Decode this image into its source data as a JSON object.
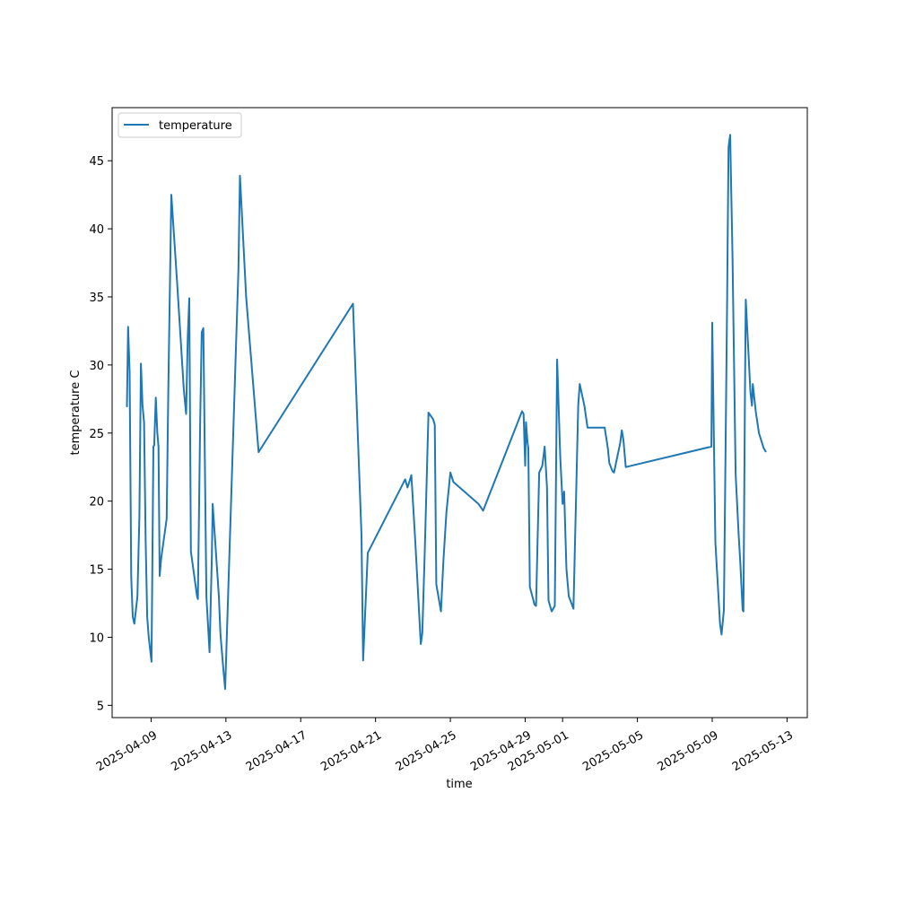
{
  "chart_data": {
    "type": "line",
    "xlabel": "time",
    "ylabel": "temperature C",
    "legend": "top-left",
    "grid": false,
    "colors": {
      "line": "#1f77b4"
    },
    "xlim": [
      "2025-04-06T22:00",
      "2025-05-14T02:00"
    ],
    "ylim": [
      4.1,
      48.9
    ],
    "x_ticks": [
      "2025-04-09",
      "2025-04-13",
      "2025-04-17",
      "2025-04-21",
      "2025-04-25",
      "2025-04-29",
      "2025-05-01",
      "2025-05-05",
      "2025-05-09",
      "2025-05-13"
    ],
    "y_ticks": [
      5,
      10,
      15,
      20,
      25,
      30,
      35,
      40,
      45
    ],
    "series": [
      {
        "name": "temperature",
        "points": [
          [
            "2025-04-07T17:00",
            26.9
          ],
          [
            "2025-04-07T18:30",
            32.8
          ],
          [
            "2025-04-07T20:30",
            29.5
          ],
          [
            "2025-04-07T22:30",
            14.4
          ],
          [
            "2025-04-08T00:30",
            11.5
          ],
          [
            "2025-04-08T02:30",
            11.0
          ],
          [
            "2025-04-08T04:30",
            12.0
          ],
          [
            "2025-04-08T06:30",
            13.0
          ],
          [
            "2025-04-08T09:00",
            18.9
          ],
          [
            "2025-04-08T11:00",
            30.1
          ],
          [
            "2025-04-08T13:00",
            27.0
          ],
          [
            "2025-04-08T15:00",
            25.8
          ],
          [
            "2025-04-08T17:00",
            17.0
          ],
          [
            "2025-04-08T19:00",
            11.5
          ],
          [
            "2025-04-08T21:00",
            10.0
          ],
          [
            "2025-04-09T00:30",
            8.2
          ],
          [
            "2025-04-09T03:00",
            24.0
          ],
          [
            "2025-04-09T04:00",
            24.1
          ],
          [
            "2025-04-09T06:00",
            27.6
          ],
          [
            "2025-04-09T08:00",
            25.0
          ],
          [
            "2025-04-09T09:30",
            24.0
          ],
          [
            "2025-04-09T11:00",
            14.5
          ],
          [
            "2025-04-09T13:00",
            15.8
          ],
          [
            "2025-04-09T20:00",
            18.7
          ],
          [
            "2025-04-09T22:00",
            28.0
          ],
          [
            "2025-04-10T02:00",
            42.5
          ],
          [
            "2025-04-10T10:00",
            35.5
          ],
          [
            "2025-04-10T18:00",
            28.2
          ],
          [
            "2025-04-10T21:00",
            26.4
          ],
          [
            "2025-04-10T23:00",
            32.0
          ],
          [
            "2025-04-11T01:00",
            34.9
          ],
          [
            "2025-04-11T03:00",
            16.3
          ],
          [
            "2025-04-11T11:00",
            13.0
          ],
          [
            "2025-04-11T12:00",
            12.8
          ],
          [
            "2025-04-11T15:00",
            26.0
          ],
          [
            "2025-04-11T17:00",
            32.4
          ],
          [
            "2025-04-11T19:00",
            32.7
          ],
          [
            "2025-04-11T23:00",
            13.0
          ],
          [
            "2025-04-12T03:00",
            8.9
          ],
          [
            "2025-04-12T06:00",
            16.0
          ],
          [
            "2025-04-12T07:00",
            19.8
          ],
          [
            "2025-04-12T15:00",
            13.0
          ],
          [
            "2025-04-12T17:00",
            10.2
          ],
          [
            "2025-04-12T21:00",
            7.5
          ],
          [
            "2025-04-12T23:00",
            6.2
          ],
          [
            "2025-04-13T16:00",
            37.0
          ],
          [
            "2025-04-13T18:00",
            43.9
          ],
          [
            "2025-04-14T02:00",
            35.0
          ],
          [
            "2025-04-14T18:00",
            23.6
          ],
          [
            "2025-04-19T19:00",
            34.5
          ],
          [
            "2025-04-20T06:00",
            17.5
          ],
          [
            "2025-04-20T08:00",
            8.3
          ],
          [
            "2025-04-20T14:00",
            16.2
          ],
          [
            "2025-04-22T14:00",
            21.6
          ],
          [
            "2025-04-22T17:00",
            21.0
          ],
          [
            "2025-04-22T22:00",
            21.9
          ],
          [
            "2025-04-23T03:00",
            17.0
          ],
          [
            "2025-04-23T10:00",
            9.5
          ],
          [
            "2025-04-23T12:00",
            10.3
          ],
          [
            "2025-04-23T15:00",
            16.0
          ],
          [
            "2025-04-23T20:00",
            26.5
          ],
          [
            "2025-04-24T02:00",
            26.0
          ],
          [
            "2025-04-24T04:00",
            25.6
          ],
          [
            "2025-04-24T06:00",
            13.9
          ],
          [
            "2025-04-24T12:00",
            11.9
          ],
          [
            "2025-04-24T15:00",
            15.6
          ],
          [
            "2025-04-24T19:00",
            19.2
          ],
          [
            "2025-04-25T00:00",
            22.1
          ],
          [
            "2025-04-25T04:00",
            21.4
          ],
          [
            "2025-04-26T12:00",
            19.8
          ],
          [
            "2025-04-26T18:00",
            19.3
          ],
          [
            "2025-04-28T20:00",
            26.6
          ],
          [
            "2025-04-28T22:00",
            26.4
          ],
          [
            "2025-04-29T00:00",
            22.6
          ],
          [
            "2025-04-29T01:00",
            25.8
          ],
          [
            "2025-04-29T03:00",
            24.3
          ],
          [
            "2025-04-29T04:00",
            23.9
          ],
          [
            "2025-04-29T06:00",
            13.7
          ],
          [
            "2025-04-29T12:00",
            12.4
          ],
          [
            "2025-04-29T14:00",
            12.3
          ],
          [
            "2025-04-29T18:00",
            22.1
          ],
          [
            "2025-04-29T22:00",
            22.6
          ],
          [
            "2025-04-30T01:00",
            24.0
          ],
          [
            "2025-04-30T04:00",
            21.0
          ],
          [
            "2025-04-30T06:00",
            12.7
          ],
          [
            "2025-04-30T10:00",
            11.9
          ],
          [
            "2025-04-30T14:00",
            12.3
          ],
          [
            "2025-04-30T17:00",
            30.4
          ],
          [
            "2025-04-30T21:00",
            23.2
          ],
          [
            "2025-05-01T00:00",
            19.8
          ],
          [
            "2025-05-01T02:00",
            20.7
          ],
          [
            "2025-05-01T05:00",
            15.0
          ],
          [
            "2025-05-01T08:00",
            13.0
          ],
          [
            "2025-05-01T10:00",
            12.7
          ],
          [
            "2025-05-01T12:00",
            12.4
          ],
          [
            "2025-05-01T14:00",
            12.1
          ],
          [
            "2025-05-01T20:00",
            27.0
          ],
          [
            "2025-05-01T22:00",
            28.6
          ],
          [
            "2025-05-02T04:00",
            27.0
          ],
          [
            "2025-05-02T08:00",
            25.4
          ],
          [
            "2025-05-03T06:00",
            25.4
          ],
          [
            "2025-05-03T10:00",
            23.9
          ],
          [
            "2025-05-03T12:00",
            22.8
          ],
          [
            "2025-05-03T16:00",
            22.2
          ],
          [
            "2025-05-03T18:00",
            22.1
          ],
          [
            "2025-05-04T02:00",
            24.3
          ],
          [
            "2025-05-04T04:00",
            25.2
          ],
          [
            "2025-05-04T06:00",
            24.5
          ],
          [
            "2025-05-04T09:00",
            22.5
          ],
          [
            "2025-05-08T23:00",
            24.0
          ],
          [
            "2025-05-09T00:00",
            33.1
          ],
          [
            "2025-05-09T04:00",
            17.0
          ],
          [
            "2025-05-09T10:00",
            11.0
          ],
          [
            "2025-05-09T12:00",
            10.2
          ],
          [
            "2025-05-09T15:00",
            12.0
          ],
          [
            "2025-05-09T19:00",
            34.0
          ],
          [
            "2025-05-09T21:00",
            46.0
          ],
          [
            "2025-05-09T23:00",
            46.9
          ],
          [
            "2025-05-10T02:00",
            38.0
          ],
          [
            "2025-05-10T06:00",
            22.0
          ],
          [
            "2025-05-10T10:00",
            17.5
          ],
          [
            "2025-05-10T12:00",
            15.5
          ],
          [
            "2025-05-10T15:00",
            12.0
          ],
          [
            "2025-05-10T16:00",
            11.9
          ],
          [
            "2025-05-10T18:00",
            28.0
          ],
          [
            "2025-05-10T19:00",
            34.8
          ],
          [
            "2025-05-11T01:00",
            28.0
          ],
          [
            "2025-05-11T03:00",
            27.0
          ],
          [
            "2025-05-11T04:00",
            28.6
          ],
          [
            "2025-05-11T08:00",
            26.5
          ],
          [
            "2025-05-11T12:00",
            25.0
          ],
          [
            "2025-05-11T18:00",
            23.9
          ],
          [
            "2025-05-11T21:00",
            23.6
          ]
        ]
      }
    ]
  }
}
